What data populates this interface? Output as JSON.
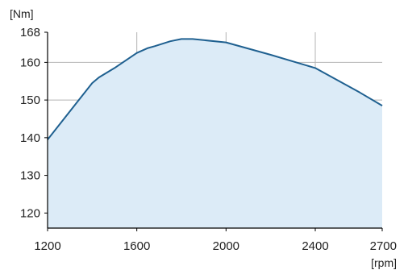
{
  "chart_data": {
    "type": "area",
    "title": "",
    "xlabel": "[rpm]",
    "ylabel": "[Nm]",
    "xlim": [
      1200,
      2700
    ],
    "ylim": [
      116,
      168
    ],
    "grid": true,
    "x_ticks": [
      1200,
      1600,
      2000,
      2400,
      2700
    ],
    "x_tick_labels": [
      "1200",
      "1600",
      "2000",
      "2400",
      "2700"
    ],
    "y_ticks": [
      120,
      130,
      140,
      150,
      160,
      168
    ],
    "y_tick_labels": [
      "120",
      "130",
      "140",
      "150",
      "160",
      "168"
    ],
    "x_grid": [
      1600,
      2000,
      2400
    ],
    "y_grid": [
      120,
      130,
      140,
      150,
      160
    ],
    "series": [
      {
        "x": [
          1200,
          1320,
          1400,
          1430,
          1500,
          1600,
          1650,
          1680,
          1750,
          1800,
          1850,
          2000,
          2200,
          2400,
          2600,
          2700
        ],
        "y": [
          139.5,
          148.5,
          154.5,
          156,
          158.5,
          162.5,
          163.8,
          164.3,
          165.6,
          166.2,
          166.2,
          165.3,
          162,
          158.5,
          152,
          148.5
        ]
      }
    ],
    "colors": {
      "line": "#1f6090",
      "fill": "#dcebf7",
      "grid": "#b4b4b4",
      "frame": "#000000"
    }
  }
}
